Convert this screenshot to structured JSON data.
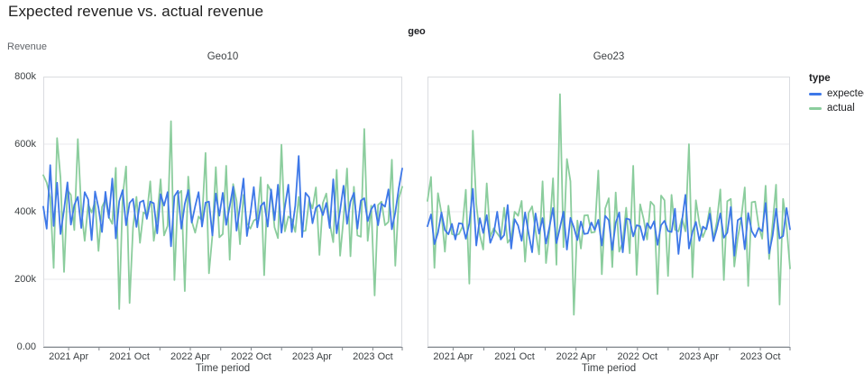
{
  "title": "Expected revenue vs. actual revenue",
  "facet_header": "geo",
  "y_axis_title": "Revenue",
  "x_axis_title": "Time period",
  "legend": {
    "title": "type",
    "items": [
      {
        "label": "expected",
        "color": "#3e78e8"
      },
      {
        "label": "actual",
        "color": "#8bcd9d"
      }
    ]
  },
  "style": {
    "frame_color": "#dadce0",
    "grid_color": "#e8eaed",
    "axis_color": "#80868b",
    "tick_text_color": "#3c4043"
  },
  "chart_data": [
    {
      "type": "line",
      "facet": "Geo10",
      "xlabel": "Time period",
      "ylabel": "Revenue",
      "x_start": "2021 Jan",
      "x_end": "2023 Dec",
      "x_freq": "weekly (approx.)",
      "x_tick_labels": [
        "2021 Apr",
        "2021 Oct",
        "2022 Apr",
        "2022 Oct",
        "2023 Apr",
        "2023 Oct"
      ],
      "minor_ticks": "every 3 months",
      "ylim": [
        0,
        800000
      ],
      "y_tick_labels": [
        "0.00",
        "200k",
        "400k",
        "600k",
        "800k"
      ],
      "grid": "horizontal only",
      "values_unit": "thousands",
      "series": [
        {
          "name": "expected",
          "color": "#3e78e8",
          "values_k": [
            415,
            350,
            538,
            358,
            486,
            334,
            406,
            487,
            362,
            420,
            444,
            352,
            458,
            436,
            316,
            460,
            412,
            340,
            459,
            382,
            498,
            321,
            431,
            464,
            360,
            426,
            438,
            355,
            428,
            433,
            379,
            430,
            425,
            336,
            452,
            418,
            458,
            298,
            446,
            462,
            350,
            423,
            464,
            368,
            416,
            458,
            356,
            427,
            430,
            330,
            454,
            388,
            456,
            361,
            416,
            474,
            344,
            416,
            498,
            328,
            393,
            473,
            354,
            417,
            428,
            356,
            466,
            375,
            480,
            338,
            414,
            480,
            340,
            418,
            565,
            325,
            456,
            443,
            366,
            412,
            420,
            390,
            426,
            352,
            496,
            336,
            404,
            477,
            364,
            430,
            456,
            350,
            433,
            440,
            372,
            407,
            422,
            360,
            424,
            415,
            466,
            348,
            398,
            470,
            528
          ]
        },
        {
          "name": "actual",
          "color": "#8bcd9d",
          "values_k": [
            508,
            486,
            442,
            234,
            618,
            500,
            222,
            464,
            450,
            346,
            615,
            408,
            314,
            422,
            398,
            430,
            284,
            414,
            436,
            384,
            364,
            530,
            112,
            446,
            534,
            130,
            354,
            444,
            308,
            398,
            392,
            490,
            314,
            384,
            496,
            330,
            358,
            668,
            198,
            452,
            462,
            165,
            504,
            372,
            338,
            386,
            374,
            574,
            218,
            330,
            532,
            324,
            334,
            536,
            258,
            482,
            432,
            304,
            450,
            366,
            350,
            374,
            380,
            502,
            212,
            480,
            460,
            354,
            322,
            598,
            342,
            386,
            378,
            340,
            444,
            342,
            344,
            434,
            410,
            472,
            272,
            426,
            454,
            366,
            310,
            524,
            270,
            380,
            528,
            268,
            474,
            330,
            326,
            645,
            314,
            418,
            152,
            420,
            430,
            360,
            370,
            554,
            240,
            440,
            474
          ]
        }
      ]
    },
    {
      "type": "line",
      "facet": "Geo23",
      "xlabel": "Time period",
      "ylabel": "Revenue",
      "x_start": "2021 Jan",
      "x_end": "2023 Dec",
      "x_freq": "weekly (approx.)",
      "x_tick_labels": [
        "2021 Apr",
        "2021 Oct",
        "2022 Apr",
        "2022 Oct",
        "2023 Apr",
        "2023 Oct"
      ],
      "minor_ticks": "every 3 months",
      "ylim": [
        0,
        800000
      ],
      "y_tick_labels": [
        "0.00",
        "200k",
        "400k",
        "600k",
        "800k"
      ],
      "grid": "horizontal only",
      "values_unit": "thousands",
      "series": [
        {
          "name": "expected",
          "color": "#3e78e8",
          "values_k": [
            357,
            392,
            304,
            338,
            398,
            346,
            333,
            364,
            318,
            366,
            364,
            320,
            366,
            468,
            300,
            381,
            337,
            390,
            308,
            334,
            400,
            318,
            331,
            420,
            291,
            378,
            359,
            314,
            398,
            336,
            280,
            395,
            335,
            381,
            306,
            356,
            411,
            307,
            353,
            400,
            288,
            382,
            354,
            316,
            371,
            334,
            336,
            368,
            346,
            376,
            300,
            388,
            375,
            287,
            367,
            398,
            280,
            380,
            377,
            327,
            360,
            357,
            316,
            366,
            350,
            372,
            302,
            360,
            373,
            343,
            340,
            409,
            275,
            373,
            450,
            291,
            340,
            370,
            314,
            356,
            348,
            394,
            313,
            349,
            395,
            323,
            338,
            414,
            270,
            375,
            382,
            289,
            396,
            343,
            325,
            352,
            342,
            426,
            277,
            329,
            409,
            321,
            328,
            411,
            348
          ]
        },
        {
          "name": "actual",
          "color": "#8bcd9d",
          "values_k": [
            432,
            503,
            234,
            455,
            395,
            282,
            418,
            334,
            330,
            334,
            355,
            465,
            187,
            640,
            423,
            332,
            288,
            484,
            326,
            351,
            336,
            321,
            412,
            308,
            323,
            400,
            388,
            432,
            252,
            396,
            416,
            344,
            274,
            490,
            248,
            344,
            499,
            243,
            748,
            295,
            556,
            490,
            95,
            374,
            291,
            389,
            390,
            338,
            340,
            522,
            215,
            410,
            440,
            236,
            457,
            282,
            310,
            412,
            277,
            536,
            213,
            422,
            378,
            318,
            430,
            418,
            156,
            448,
            434,
            210,
            450,
            347,
            342,
            380,
            342,
            600,
            206,
            434,
            364,
            325,
            352,
            412,
            319,
            370,
            466,
            198,
            431,
            438,
            238,
            322,
            381,
            472,
            180,
            428,
            430,
            358,
            320,
            477,
            260,
            364,
            480,
            125,
            438,
            360,
            232
          ]
        }
      ]
    }
  ]
}
